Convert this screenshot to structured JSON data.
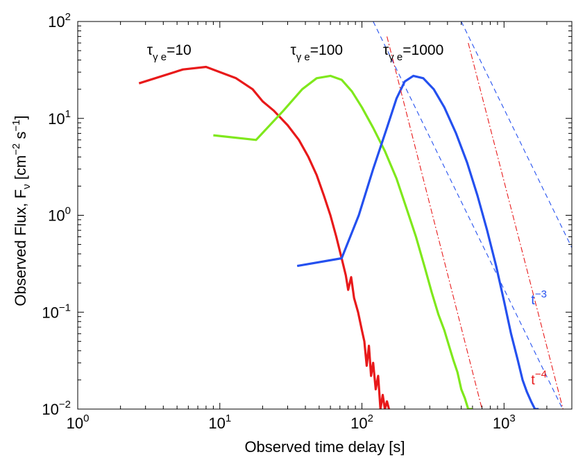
{
  "chart_data": {
    "type": "line",
    "xscale": "log",
    "yscale": "log",
    "xlim": [
      1,
      3000
    ],
    "ylim": [
      0.01,
      100
    ],
    "xlabel": "Observed time delay [s]",
    "ylabel": {
      "base": "Observed Flux, F",
      "sub": "ν",
      "units_open": " [cm",
      "exp1": "−2",
      "mid": " s",
      "exp2": "−1",
      "units_close": "]"
    },
    "x_ticks": [
      {
        "value": 1,
        "base": "10",
        "exp": "0"
      },
      {
        "value": 10,
        "base": "10",
        "exp": "1"
      },
      {
        "value": 100,
        "base": "10",
        "exp": "2"
      },
      {
        "value": 1000,
        "base": "10",
        "exp": "3"
      }
    ],
    "y_ticks": [
      {
        "value": 0.01,
        "base": "10",
        "exp": "−2"
      },
      {
        "value": 0.1,
        "base": "10",
        "exp": "−1"
      },
      {
        "value": 1,
        "base": "10",
        "exp": "0"
      },
      {
        "value": 10,
        "base": "10",
        "exp": "1"
      },
      {
        "value": 100,
        "base": "10",
        "exp": "2"
      }
    ],
    "series": [
      {
        "name": "τγe=10",
        "label_tau": "τ",
        "label_sub": "γ e",
        "label_value": "=10",
        "color": "#e8191a",
        "points": [
          [
            2.7,
            23
          ],
          [
            5.5,
            32
          ],
          [
            8,
            34
          ],
          [
            13,
            26
          ],
          [
            17,
            20
          ],
          [
            20,
            15
          ],
          [
            24,
            12
          ],
          [
            30,
            8.5
          ],
          [
            36,
            6
          ],
          [
            42,
            4
          ],
          [
            48,
            2.6
          ],
          [
            54,
            1.6
          ],
          [
            60,
            1.0
          ],
          [
            66,
            0.6
          ],
          [
            72,
            0.36
          ],
          [
            77,
            0.24
          ],
          [
            80,
            0.17
          ],
          [
            84,
            0.23
          ],
          [
            88,
            0.14
          ],
          [
            94,
            0.1
          ],
          [
            100,
            0.065
          ],
          [
            104,
            0.05
          ],
          [
            108,
            0.028
          ],
          [
            112,
            0.045
          ],
          [
            116,
            0.022
          ],
          [
            120,
            0.03
          ],
          [
            125,
            0.016
          ],
          [
            130,
            0.022
          ],
          [
            135,
            0.01
          ],
          [
            140,
            0.014
          ],
          [
            145,
            0.01
          ],
          [
            150,
            0.012
          ],
          [
            155,
            0.01
          ]
        ]
      },
      {
        "name": "τγe=100",
        "label_tau": "τ",
        "label_sub": "γ e",
        "label_value": "=100",
        "color": "#7fe81c",
        "points": [
          [
            9,
            6.7
          ],
          [
            18,
            6
          ],
          [
            28,
            12
          ],
          [
            38,
            20
          ],
          [
            48,
            26
          ],
          [
            60,
            27.5
          ],
          [
            72,
            25
          ],
          [
            85,
            19
          ],
          [
            100,
            13
          ],
          [
            120,
            8
          ],
          [
            145,
            4.6
          ],
          [
            175,
            2.4
          ],
          [
            205,
            1.2
          ],
          [
            240,
            0.6
          ],
          [
            275,
            0.3
          ],
          [
            310,
            0.16
          ],
          [
            345,
            0.095
          ],
          [
            380,
            0.065
          ],
          [
            410,
            0.045
          ],
          [
            440,
            0.032
          ],
          [
            470,
            0.024
          ],
          [
            500,
            0.016
          ],
          [
            530,
            0.013
          ],
          [
            560,
            0.01
          ],
          [
            600,
            0.01
          ]
        ]
      },
      {
        "name": "τγe=1000",
        "label_tau": "τ",
        "label_sub": "γ e",
        "label_value": "=1000",
        "color": "#2450ef",
        "points": [
          [
            35,
            0.3
          ],
          [
            72,
            0.36
          ],
          [
            95,
            1.0
          ],
          [
            120,
            3
          ],
          [
            150,
            8
          ],
          [
            175,
            16
          ],
          [
            200,
            24
          ],
          [
            230,
            27.5
          ],
          [
            270,
            26
          ],
          [
            320,
            20
          ],
          [
            380,
            13
          ],
          [
            460,
            7
          ],
          [
            550,
            3.5
          ],
          [
            650,
            1.6
          ],
          [
            760,
            0.7
          ],
          [
            880,
            0.3
          ],
          [
            1000,
            0.13
          ],
          [
            1120,
            0.06
          ],
          [
            1250,
            0.032
          ],
          [
            1350,
            0.02
          ],
          [
            1450,
            0.015
          ],
          [
            1550,
            0.012
          ],
          [
            1650,
            0.01
          ],
          [
            1750,
            0.01
          ]
        ]
      }
    ],
    "reference_lines": [
      {
        "name": "t^-3",
        "label_base": "t",
        "label_exp": "−3",
        "color": "#2450ef",
        "style": "dashed",
        "slope": -3,
        "segments": [
          [
            [
              120,
              100
            ],
            [
              3000,
              0.0064
            ]
          ],
          [
            [
              500,
              100
            ],
            [
              3000,
              0.463
            ]
          ]
        ]
      },
      {
        "name": "t^-4",
        "label_base": "t",
        "label_exp": "−4",
        "color": "#e8191a",
        "style": "dashdot",
        "segments": [
          [
            [
              150,
              70
            ],
            [
              700,
              0.01
            ]
          ],
          [
            [
              560,
              60
            ],
            [
              2600,
              0.01
            ]
          ]
        ]
      }
    ]
  }
}
